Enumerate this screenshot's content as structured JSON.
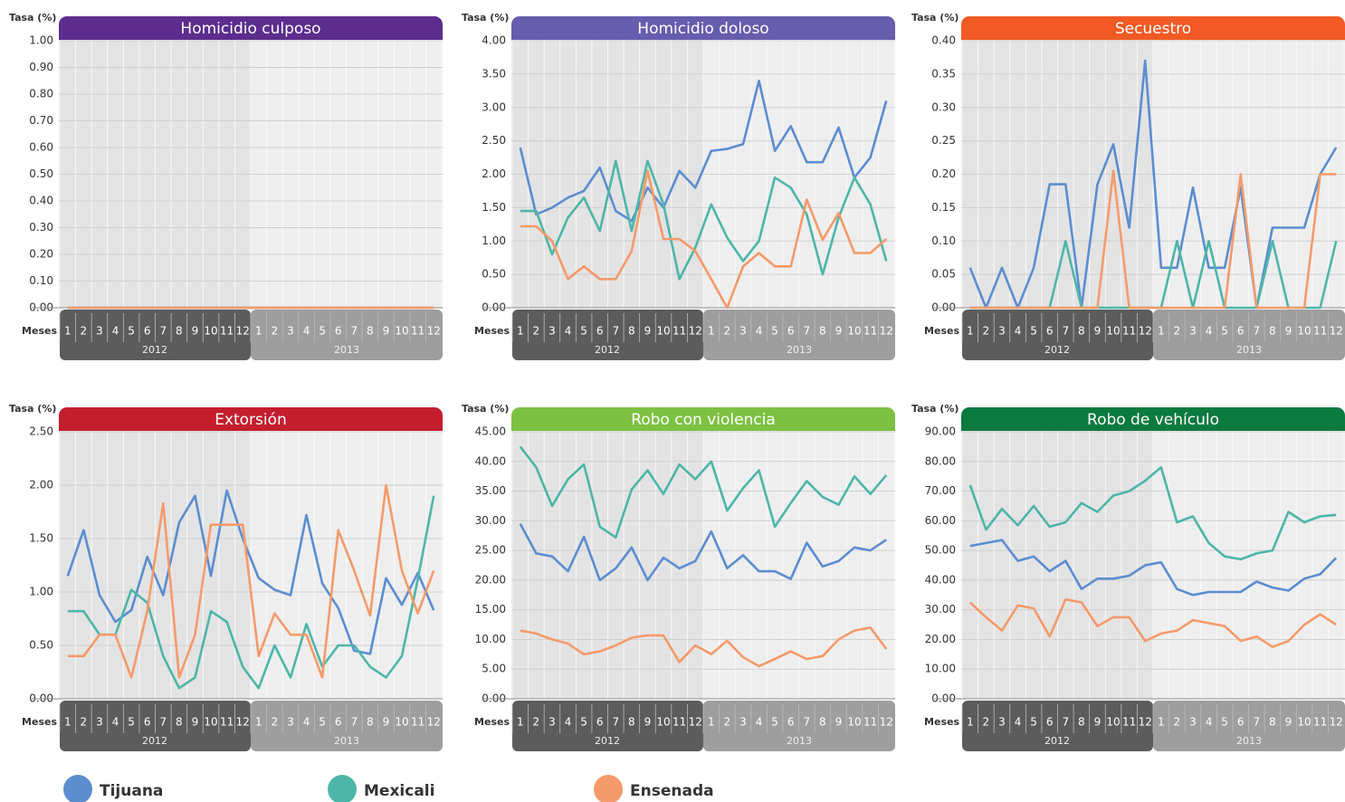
{
  "chart_data": [
    {
      "type": "line",
      "title": "Homicidio culposo",
      "title_color": "#5c2d8e",
      "y_label": "Tasa (%)",
      "x_label": "Meses",
      "years": [
        "2012",
        "2013"
      ],
      "categories": [
        "1",
        "2",
        "3",
        "4",
        "5",
        "6",
        "7",
        "8",
        "9",
        "10",
        "11",
        "12",
        "1",
        "2",
        "3",
        "4",
        "5",
        "6",
        "7",
        "8",
        "9",
        "10",
        "11",
        "12"
      ],
      "ylim": [
        0,
        1
      ],
      "yticks": [
        {
          "value": 0,
          "label": "0.00"
        },
        {
          "value": 0.1,
          "label": "0.10"
        },
        {
          "value": 0.2,
          "label": "0.20"
        },
        {
          "value": 0.3,
          "label": "0.30"
        },
        {
          "value": 0.4,
          "label": "0.40"
        },
        {
          "value": 0.5,
          "label": "0.50"
        },
        {
          "value": 0.6,
          "label": "0.60"
        },
        {
          "value": 0.7,
          "label": "0.70"
        },
        {
          "value": 0.8,
          "label": "0.80"
        },
        {
          "value": 0.9,
          "label": "0.90"
        },
        {
          "value": 1,
          "label": "1.00"
        }
      ],
      "series": [
        {
          "name": "Tijuana",
          "color": "#5b8dd0",
          "values": [
            0,
            0,
            0,
            0,
            0,
            0,
            0,
            0,
            0,
            0,
            0,
            0,
            0,
            0,
            0,
            0,
            0,
            0,
            0,
            0,
            0,
            0,
            0,
            0
          ]
        },
        {
          "name": "Mexicali",
          "color": "#4db6a8",
          "values": [
            0,
            0,
            0,
            0,
            0,
            0,
            0,
            0,
            0,
            0,
            0,
            0,
            0,
            0,
            0,
            0,
            0,
            0,
            0,
            0,
            0,
            0,
            0,
            0
          ]
        },
        {
          "name": "Ensenada",
          "color": "#f59a6a",
          "values": [
            0,
            0,
            0,
            0,
            0,
            0,
            0,
            0,
            0,
            0,
            0,
            0,
            0,
            0,
            0,
            0,
            0,
            0,
            0,
            0,
            0,
            0,
            0,
            0
          ]
        }
      ]
    },
    {
      "type": "line",
      "title": "Homicidio doloso",
      "title_color": "#675cad",
      "y_label": "Tasa (%)",
      "x_label": "Meses",
      "years": [
        "2012",
        "2013"
      ],
      "categories": [
        "1",
        "2",
        "3",
        "4",
        "5",
        "6",
        "7",
        "8",
        "9",
        "10",
        "11",
        "12",
        "1",
        "2",
        "3",
        "4",
        "5",
        "6",
        "7",
        "8",
        "9",
        "10",
        "11",
        "12"
      ],
      "ylim": [
        0,
        4
      ],
      "yticks": [
        {
          "value": 0,
          "label": "0.00"
        },
        {
          "value": 0.5,
          "label": "0.50"
        },
        {
          "value": 1,
          "label": "1.00"
        },
        {
          "value": 1.5,
          "label": "1.50"
        },
        {
          "value": 2,
          "label": "2.00"
        },
        {
          "value": 2.5,
          "label": "2.50"
        },
        {
          "value": 3,
          "label": "3.00"
        },
        {
          "value": 3.5,
          "label": "3.50"
        },
        {
          "value": 4,
          "label": "4.00"
        }
      ],
      "series": [
        {
          "color": "#5b8dd0",
          "values": [
            2.4,
            1.4,
            1.5,
            1.65,
            1.75,
            2.1,
            1.45,
            1.3,
            1.8,
            1.5,
            2.05,
            1.8,
            2.35,
            2.38,
            2.45,
            3.4,
            2.35,
            2.72,
            2.18,
            2.18,
            2.7,
            1.95,
            2.25,
            3.1
          ]
        },
        {
          "color": "#4db6a8",
          "values": [
            1.45,
            1.45,
            0.8,
            1.35,
            1.65,
            1.15,
            2.2,
            1.15,
            2.2,
            1.55,
            0.43,
            0.9,
            1.55,
            1.05,
            0.7,
            1.0,
            1.95,
            1.8,
            1.4,
            0.5,
            1.35,
            1.95,
            1.55,
            0.7
          ]
        },
        {
          "color": "#f59a6a",
          "values": [
            1.22,
            1.22,
            1.0,
            0.43,
            0.62,
            0.43,
            0.43,
            0.85,
            2.05,
            1.03,
            1.03,
            0.85,
            0.43,
            0,
            0.62,
            0.82,
            0.62,
            0.62,
            1.62,
            1.02,
            1.42,
            0.82,
            0.82,
            1.03
          ]
        }
      ]
    },
    {
      "type": "line",
      "title": "Secuestro",
      "title_color": "#f15a24",
      "y_label": "Tasa (%)",
      "x_label": "Meses",
      "years": [
        "2012",
        "2013"
      ],
      "categories": [
        "1",
        "2",
        "3",
        "4",
        "5",
        "6",
        "7",
        "8",
        "9",
        "10",
        "11",
        "12",
        "1",
        "2",
        "3",
        "4",
        "5",
        "6",
        "7",
        "8",
        "9",
        "10",
        "11",
        "12"
      ],
      "ylim": [
        0,
        0.4
      ],
      "yticks": [
        {
          "value": 0,
          "label": "0.00"
        },
        {
          "value": 0.05,
          "label": "0.05"
        },
        {
          "value": 0.1,
          "label": "0.10"
        },
        {
          "value": 0.15,
          "label": "0.15"
        },
        {
          "value": 0.2,
          "label": "0.20"
        },
        {
          "value": 0.25,
          "label": "0.25"
        },
        {
          "value": 0.3,
          "label": "0.30"
        },
        {
          "value": 0.35,
          "label": "0.35"
        },
        {
          "value": 0.4,
          "label": "0.40"
        }
      ],
      "series": [
        {
          "color": "#5b8dd0",
          "values": [
            0.06,
            0,
            0.06,
            0,
            0.06,
            0.185,
            0.185,
            0,
            0.185,
            0.245,
            0.12,
            0.37,
            0.06,
            0.06,
            0.18,
            0.06,
            0.06,
            0.18,
            0,
            0.12,
            0.12,
            0.12,
            0.2,
            0.24
          ]
        },
        {
          "color": "#4db6a8",
          "values": [
            0,
            0,
            0,
            0,
            0,
            0,
            0.1,
            0,
            0,
            0,
            0,
            0,
            0,
            0.1,
            0,
            0.1,
            0,
            0,
            0,
            0.1,
            0,
            0,
            0,
            0.1
          ]
        },
        {
          "color": "#f59a6a",
          "values": [
            0,
            0,
            0,
            0,
            0,
            0,
            0,
            0,
            0,
            0.205,
            0,
            0,
            0,
            0,
            0,
            0,
            0,
            0.2,
            0,
            0,
            0,
            0,
            0.2,
            0.2
          ]
        }
      ]
    },
    {
      "type": "line",
      "title": "Extorsión",
      "title_color": "#c41e2e",
      "y_label": "Tasa (%)",
      "x_label": "Meses",
      "years": [
        "2012",
        "2013"
      ],
      "categories": [
        "1",
        "2",
        "3",
        "4",
        "5",
        "6",
        "7",
        "8",
        "9",
        "10",
        "11",
        "12",
        "1",
        "2",
        "3",
        "4",
        "5",
        "6",
        "7",
        "8",
        "9",
        "10",
        "11",
        "12"
      ],
      "ylim": [
        0,
        2.5
      ],
      "yticks": [
        {
          "value": 0,
          "label": "0.00"
        },
        {
          "value": 0.5,
          "label": "0.50"
        },
        {
          "value": 1,
          "label": "1.00"
        },
        {
          "value": 1.5,
          "label": "1.50"
        },
        {
          "value": 2,
          "label": "2.00"
        },
        {
          "value": 2.5,
          "label": "2.50"
        }
      ],
      "series": [
        {
          "color": "#5b8dd0",
          "values": [
            1.15,
            1.58,
            0.97,
            0.72,
            0.83,
            1.33,
            0.97,
            1.65,
            1.9,
            1.15,
            1.95,
            1.5,
            1.13,
            1.02,
            0.97,
            1.72,
            1.08,
            0.85,
            0.45,
            0.42,
            1.13,
            0.88,
            1.18,
            0.83
          ]
        },
        {
          "color": "#4db6a8",
          "values": [
            0.82,
            0.82,
            0.6,
            0.6,
            1.02,
            0.9,
            0.4,
            0.1,
            0.2,
            0.82,
            0.72,
            0.3,
            0.1,
            0.5,
            0.2,
            0.7,
            0.3,
            0.5,
            0.5,
            0.3,
            0.2,
            0.4,
            1.12,
            1.9
          ]
        },
        {
          "color": "#f59a6a",
          "values": [
            0.4,
            0.4,
            0.6,
            0.6,
            0.2,
            0.82,
            1.83,
            0.2,
            0.6,
            1.63,
            1.63,
            1.63,
            0.4,
            0.8,
            0.6,
            0.6,
            0.2,
            1.58,
            1.2,
            0.78,
            2.0,
            1.2,
            0.8,
            1.2
          ]
        }
      ]
    },
    {
      "type": "line",
      "title": "Robo con violencia",
      "title_color": "#7dc142",
      "y_label": "Tasa (%)",
      "x_label": "Meses",
      "years": [
        "2012",
        "2013"
      ],
      "categories": [
        "1",
        "2",
        "3",
        "4",
        "5",
        "6",
        "7",
        "8",
        "9",
        "10",
        "11",
        "12",
        "1",
        "2",
        "3",
        "4",
        "5",
        "6",
        "7",
        "8",
        "9",
        "10",
        "11",
        "12"
      ],
      "ylim": [
        0,
        45
      ],
      "yticks": [
        {
          "value": 0,
          "label": "0.00"
        },
        {
          "value": 5,
          "label": "5.00"
        },
        {
          "value": 10,
          "label": "10.00"
        },
        {
          "value": 15,
          "label": "15.00"
        },
        {
          "value": 20,
          "label": "20.00"
        },
        {
          "value": 25,
          "label": "25.00"
        },
        {
          "value": 30,
          "label": "30.00"
        },
        {
          "value": 35,
          "label": "35.00"
        },
        {
          "value": 40,
          "label": "40.00"
        },
        {
          "value": 45,
          "label": "45.00"
        }
      ],
      "series": [
        {
          "color": "#5b8dd0",
          "values": [
            29.5,
            24.5,
            24,
            21.5,
            27.3,
            20,
            22,
            25.5,
            20,
            23.8,
            22,
            23.2,
            28.2,
            22,
            24.2,
            21.5,
            21.5,
            20.2,
            26.3,
            22.3,
            23.2,
            25.5,
            25,
            26.8
          ]
        },
        {
          "color": "#4db6a8",
          "values": [
            42.5,
            39,
            32.5,
            37,
            39.5,
            29,
            27.2,
            35.3,
            38.5,
            34.5,
            39.5,
            37,
            40,
            31.7,
            35.5,
            38.5,
            29,
            33,
            36.7,
            34,
            32.7,
            37.5,
            34.5,
            37.7
          ]
        },
        {
          "color": "#f59a6a",
          "values": [
            11.5,
            11,
            10,
            9.3,
            7.5,
            8,
            9,
            10.3,
            10.7,
            10.7,
            6.2,
            9,
            7.5,
            9.8,
            7,
            5.5,
            6.7,
            8,
            6.7,
            7.2,
            10,
            11.5,
            12,
            8.4
          ]
        }
      ]
    },
    {
      "type": "line",
      "title": "Robo de vehículo",
      "title_color": "#0b7a3e",
      "y_label": "Tasa (%)",
      "x_label": "Meses",
      "years": [
        "2012",
        "2013"
      ],
      "categories": [
        "1",
        "2",
        "3",
        "4",
        "5",
        "6",
        "7",
        "8",
        "9",
        "10",
        "11",
        "12",
        "1",
        "2",
        "3",
        "4",
        "5",
        "6",
        "7",
        "8",
        "9",
        "10",
        "11",
        "12"
      ],
      "ylim": [
        0,
        90
      ],
      "yticks": [
        {
          "value": 0,
          "label": "0.00"
        },
        {
          "value": 10,
          "label": "10.00"
        },
        {
          "value": 20,
          "label": "20.00"
        },
        {
          "value": 30,
          "label": "30.00"
        },
        {
          "value": 40,
          "label": "40.00"
        },
        {
          "value": 50,
          "label": "50.00"
        },
        {
          "value": 60,
          "label": "60.00"
        },
        {
          "value": 70,
          "label": "70.00"
        },
        {
          "value": 80,
          "label": "80.00"
        },
        {
          "value": 90,
          "label": "90.00"
        }
      ],
      "series": [
        {
          "color": "#5b8dd0",
          "values": [
            51.5,
            52.5,
            53.5,
            46.5,
            48,
            43,
            46.5,
            37,
            40.5,
            40.5,
            41.5,
            45,
            46,
            37,
            35,
            36,
            36,
            36,
            39.5,
            37.5,
            36.5,
            40.5,
            42,
            47.5
          ]
        },
        {
          "color": "#4db6a8",
          "values": [
            72,
            57,
            64,
            58.5,
            65,
            58,
            59.5,
            66,
            63,
            68.5,
            70,
            73.5,
            78,
            59.5,
            61.5,
            52.5,
            48,
            47,
            49,
            50,
            63,
            59.5,
            61.5,
            62
          ]
        },
        {
          "color": "#f59a6a",
          "values": [
            32.5,
            27.5,
            23,
            31.5,
            30.5,
            21,
            33.5,
            32.5,
            24.5,
            27.5,
            27.5,
            19.5,
            22,
            23,
            26.5,
            25.5,
            24.5,
            19.5,
            21,
            17.5,
            19.5,
            25,
            28.5,
            25
          ]
        }
      ]
    }
  ]
}
